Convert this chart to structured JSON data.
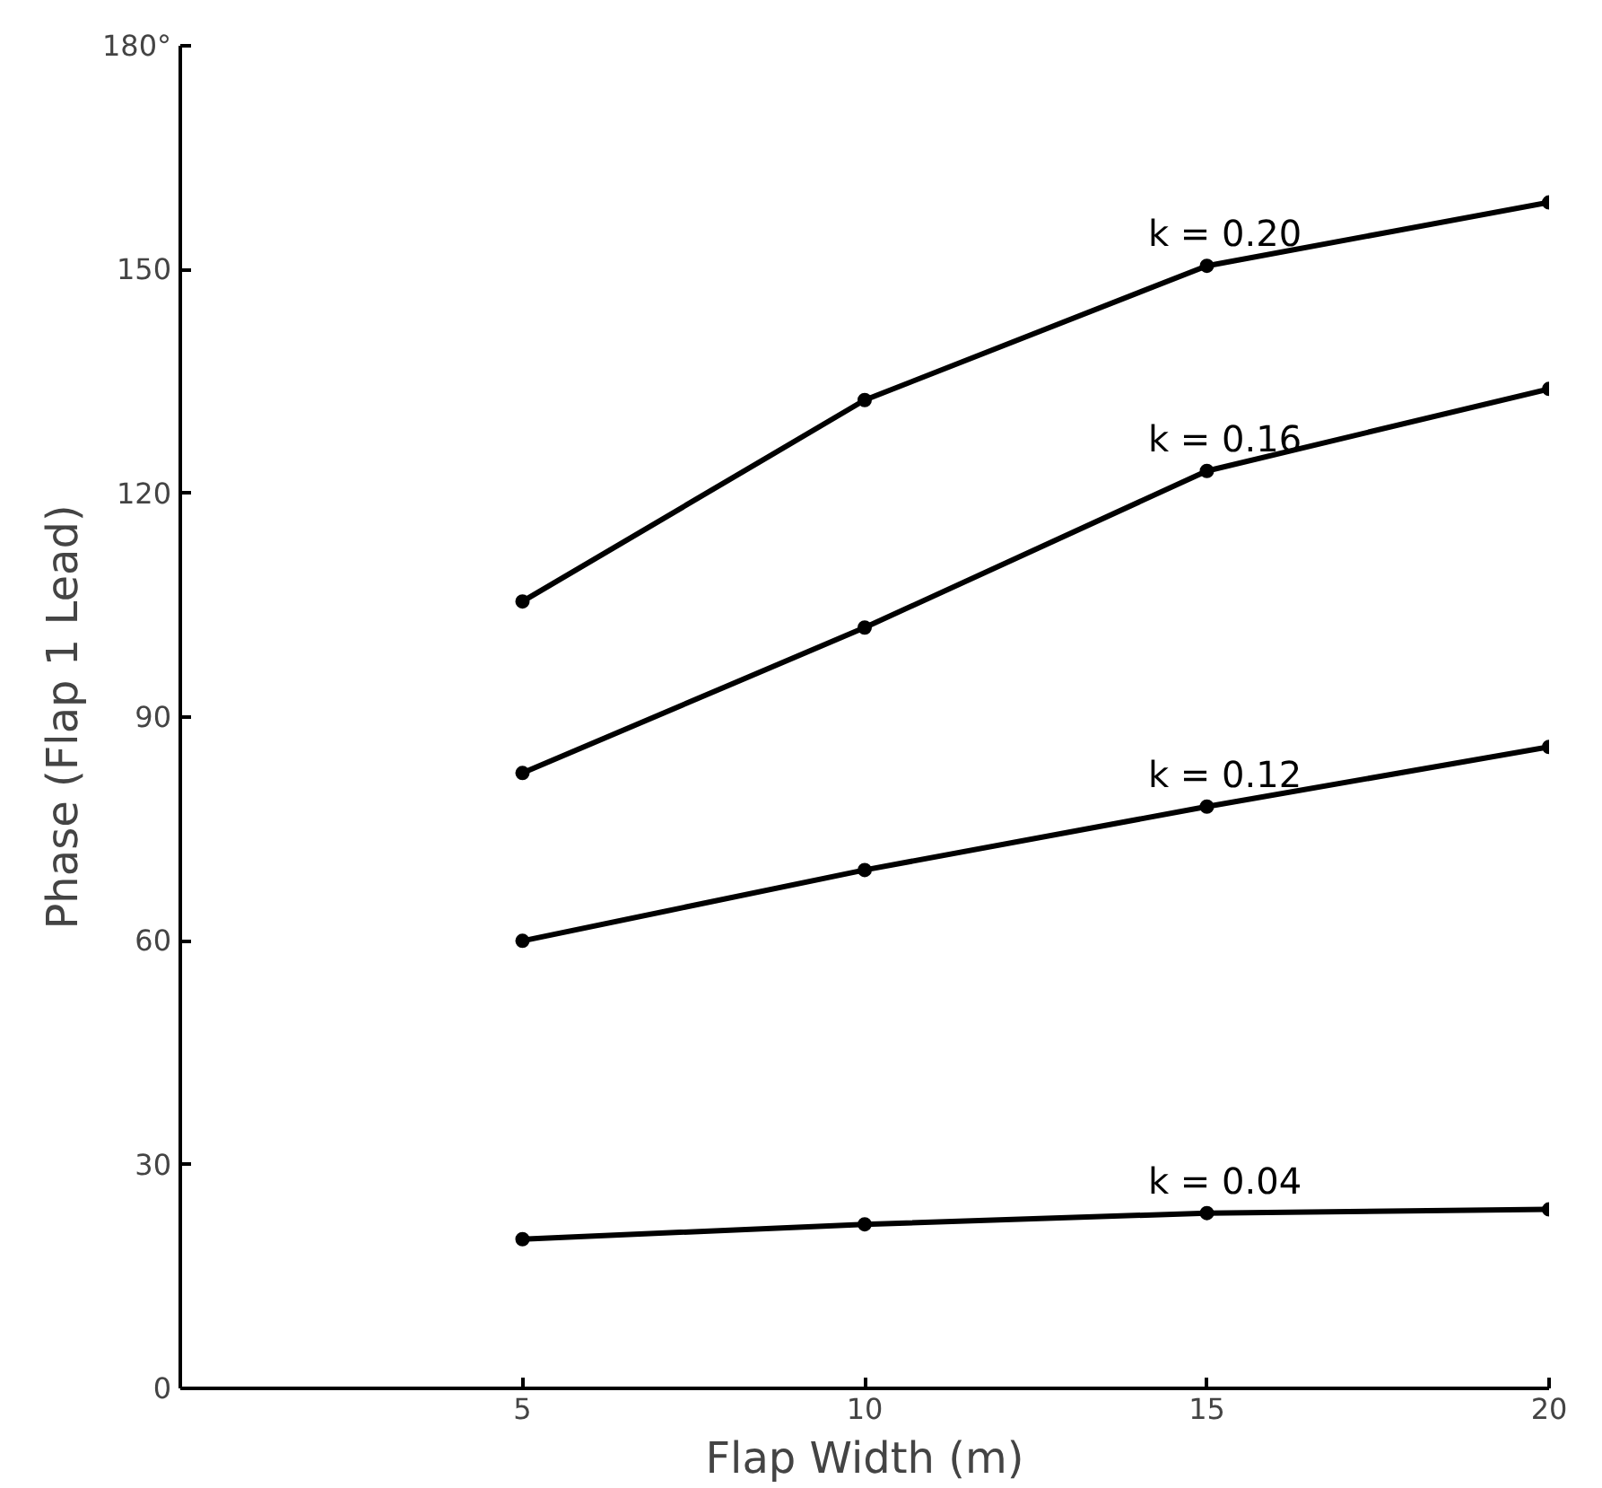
{
  "chart_data": {
    "type": "line",
    "xlabel": "Flap Width (m)",
    "ylabel": "Phase (Flap 1 Lead)",
    "x": [
      5,
      10,
      15,
      20
    ],
    "series": [
      {
        "name": "k = 0.20",
        "color": "#000000",
        "values": [
          105.5,
          132.5,
          150.5,
          159
        ]
      },
      {
        "name": "k = 0.16",
        "color": "#000000",
        "values": [
          82.5,
          102,
          123,
          134
        ]
      },
      {
        "name": "k = 0.12",
        "color": "#000000",
        "values": [
          60,
          69.5,
          78,
          86
        ]
      },
      {
        "name": "k = 0.04",
        "color": "#000000",
        "values": [
          20,
          22,
          23.5,
          24
        ]
      }
    ],
    "xlim": [
      0,
      20
    ],
    "ylim": [
      0,
      180
    ],
    "xticks": [
      5,
      10,
      15,
      20
    ],
    "yticks": [
      0,
      30,
      60,
      90,
      120,
      150,
      {
        "value": 180,
        "label": "180°"
      }
    ],
    "grid": false,
    "marker": "circle",
    "line_style": "solid"
  }
}
